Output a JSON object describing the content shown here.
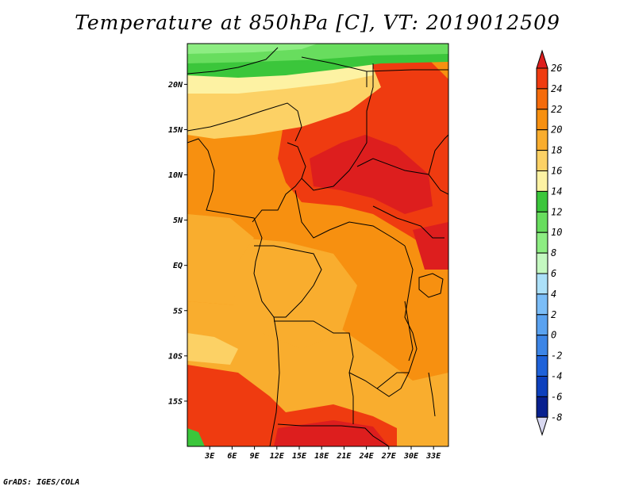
{
  "title": "Temperature at 850hPa [C], VT: 2019012509",
  "credit": "GrADS: IGES/COLA",
  "map": {
    "lat_labels": [
      "20N",
      "15N",
      "10N",
      "5N",
      "EQ",
      "5S",
      "10S",
      "15S"
    ],
    "lon_labels": [
      "3E",
      "6E",
      "9E",
      "12E",
      "15E",
      "18E",
      "21E",
      "24E",
      "27E",
      "30E",
      "33E"
    ],
    "lat_range": [
      -20.0,
      24.5
    ],
    "lon_range": [
      0.0,
      35.0
    ]
  },
  "colorbar": {
    "labels": [
      "26",
      "24",
      "22",
      "20",
      "18",
      "16",
      "14",
      "12",
      "10",
      "8",
      "6",
      "4",
      "2",
      "0",
      "-2",
      "-4",
      "-6",
      "-8"
    ],
    "colors": [
      "#dd1e1e",
      "#ef3b10",
      "#f56b0b",
      "#f79010",
      "#f9ad2e",
      "#fcd165",
      "#fdf2a3",
      "#3bc63b",
      "#68dd5e",
      "#8ded82",
      "#c4f8c0",
      "#ace0f8",
      "#7bbdf7",
      "#5aa2f0",
      "#3d85e6",
      "#1f62d9",
      "#0d40bd",
      "#08208f",
      "#0a0a68"
    ],
    "units": "C"
  },
  "colors": {
    "bg_orange": "#f79010",
    "warm_red": "#ef3b10",
    "hot_red": "#dd1e1e",
    "light_orange": "#f9ad2e",
    "yellow": "#fcd165",
    "pale_yellow": "#fdf2a3",
    "green": "#3bc63b",
    "light_green": "#68dd5e",
    "pale_green": "#8ded82"
  }
}
